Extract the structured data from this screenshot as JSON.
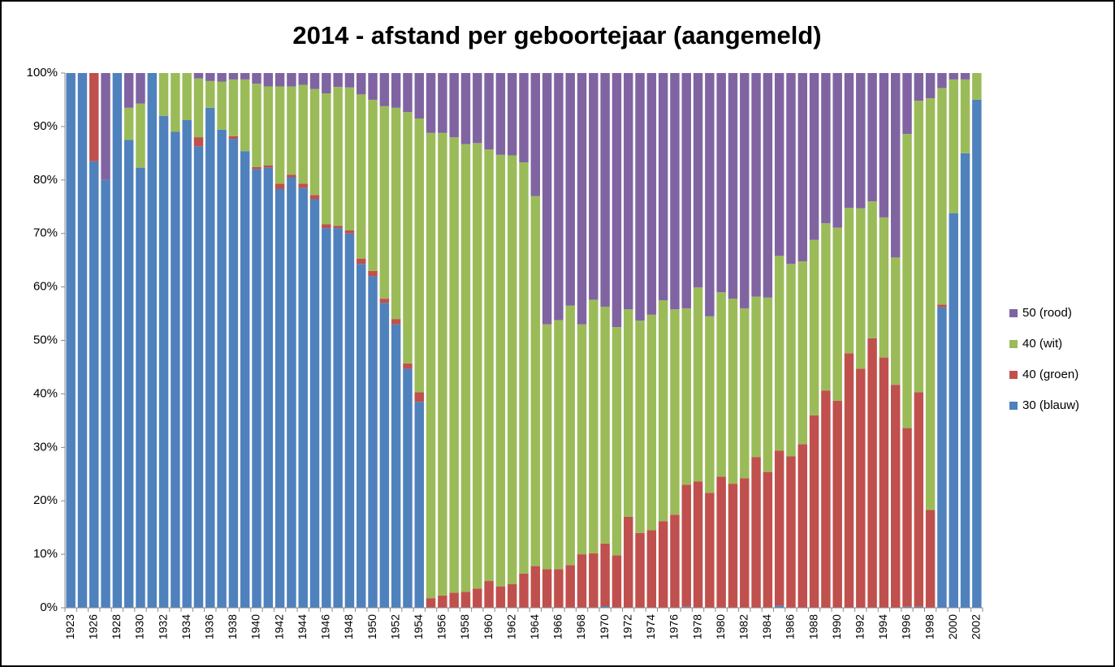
{
  "chart_data": {
    "type": "stacked_bar_percent",
    "title": "2014 - afstand per geboortejaar (aangemeld)",
    "categories": [
      1923,
      null,
      1926,
      null,
      1928,
      null,
      1930,
      null,
      1932,
      null,
      1934,
      null,
      1936,
      null,
      1938,
      null,
      1940,
      null,
      1942,
      null,
      1944,
      null,
      1946,
      null,
      1948,
      null,
      1950,
      null,
      1952,
      null,
      1954,
      null,
      1956,
      null,
      1958,
      null,
      1960,
      null,
      1962,
      null,
      1964,
      null,
      1966,
      null,
      1968,
      null,
      1970,
      null,
      1972,
      null,
      1974,
      null,
      1976,
      null,
      1978,
      null,
      1980,
      null,
      1982,
      null,
      1984,
      null,
      1986,
      null,
      1988,
      null,
      1990,
      null,
      1992,
      null,
      1994,
      null,
      1996,
      null,
      1998,
      null,
      2000,
      null,
      2002
    ],
    "series": [
      {
        "name": "30 (blauw)",
        "color": "#4f81bd",
        "values": [
          100,
          100,
          83.5,
          80,
          100,
          87.5,
          82.3,
          100,
          92,
          89,
          91.2,
          86.3,
          93.5,
          89.4,
          87.7,
          85.4,
          82,
          82.3,
          78.3,
          80.5,
          78.5,
          76.4,
          71,
          71,
          70,
          64.3,
          62,
          57,
          53,
          44.7,
          38.5,
          0,
          0,
          0,
          0,
          0,
          0,
          0,
          0,
          0,
          0,
          0,
          0,
          0,
          0,
          0,
          0.3,
          0,
          0,
          0,
          0,
          0,
          0,
          0.2,
          0,
          0,
          0,
          0,
          0,
          0,
          0,
          0.4,
          0,
          0,
          0,
          0,
          0,
          0,
          0,
          0,
          0,
          0,
          0.2,
          0.2,
          0,
          56.2,
          73.8,
          85,
          95
        ]
      },
      {
        "name": "40 (groen)",
        "color": "#c0504d",
        "values": [
          0,
          0,
          16.5,
          0,
          0,
          0,
          0,
          0,
          0,
          0,
          0,
          1.7,
          0,
          0,
          0.5,
          0,
          0.4,
          0.4,
          1,
          0.5,
          0.8,
          0.8,
          0.7,
          0.4,
          0.6,
          1,
          1,
          0.8,
          1,
          1,
          1.8,
          1.8,
          2.3,
          2.8,
          3,
          3.6,
          5,
          4,
          4.4,
          6.4,
          7.8,
          7.2,
          7.2,
          8,
          10,
          10.2,
          11.7,
          9.8,
          17,
          14,
          14.5,
          16.2,
          17.4,
          22.8,
          23.6,
          21.5,
          24.5,
          23.2,
          24.2,
          28.2,
          25.4,
          29,
          28.3,
          30.6,
          36,
          40.6,
          38.7,
          47.6,
          44.7,
          50.4,
          46.8,
          41.7,
          33.4,
          40.1,
          18.3,
          0.5,
          0,
          0,
          0
        ]
      },
      {
        "name": "40 (wit)",
        "color": "#9bbb59",
        "values": [
          0,
          0,
          0,
          0,
          0,
          6,
          12,
          0,
          8,
          11,
          8.8,
          11,
          5,
          9,
          10.6,
          13.4,
          15.6,
          14.8,
          18.2,
          16.5,
          18.5,
          19.8,
          24.5,
          26,
          26.7,
          30.7,
          32,
          36,
          39.5,
          47,
          51.2,
          87,
          86.5,
          85.2,
          83.7,
          83.3,
          80.7,
          80.7,
          80.2,
          76.9,
          69.2,
          45.8,
          46.6,
          48.5,
          43,
          47.4,
          44.3,
          42.7,
          38.8,
          39.7,
          40.3,
          41.3,
          38.4,
          33,
          36.3,
          33,
          34.5,
          34.6,
          31.8,
          30,
          32.6,
          36.4,
          36,
          34.2,
          32.8,
          31.3,
          32.4,
          27.2,
          30,
          25.6,
          26.2,
          23.8,
          55,
          54.5,
          77,
          40.5,
          25,
          13.8,
          5
        ]
      },
      {
        "name": "50 (rood)",
        "color": "#8064a2",
        "values": [
          0,
          0,
          0,
          20,
          0,
          6.5,
          5.7,
          0,
          0,
          0,
          0,
          1,
          1.5,
          1.6,
          1.2,
          1.2,
          2,
          2.5,
          2.5,
          2.5,
          2.2,
          3,
          3.8,
          2.6,
          2.7,
          4,
          5,
          6.2,
          6.5,
          7.3,
          8.5,
          11.2,
          11.2,
          12,
          13.3,
          13.1,
          14.3,
          15.3,
          15.4,
          16.7,
          23,
          47,
          46.2,
          43.5,
          47,
          42.4,
          43.7,
          47.5,
          44.2,
          46.3,
          45.2,
          42.5,
          44.2,
          44,
          40.1,
          45.5,
          41,
          42.2,
          44,
          41.8,
          42,
          34.2,
          35.7,
          35.2,
          31.2,
          28.1,
          28.9,
          25.2,
          25.3,
          24,
          27,
          34.5,
          11.4,
          5.2,
          4.7,
          2.8,
          1.2,
          1.2,
          0
        ]
      }
    ],
    "ylim": [
      0,
      100
    ],
    "yticks": [
      {
        "value": 0,
        "label": "0%"
      },
      {
        "value": 10,
        "label": "10%"
      },
      {
        "value": 20,
        "label": "20%"
      },
      {
        "value": 30,
        "label": "30%"
      },
      {
        "value": 40,
        "label": "40%"
      },
      {
        "value": 50,
        "label": "50%"
      },
      {
        "value": 60,
        "label": "60%"
      },
      {
        "value": 70,
        "label": "70%"
      },
      {
        "value": 80,
        "label": "80%"
      },
      {
        "value": 90,
        "label": "90%"
      },
      {
        "value": 100,
        "label": "100%"
      }
    ],
    "legend": "right"
  }
}
